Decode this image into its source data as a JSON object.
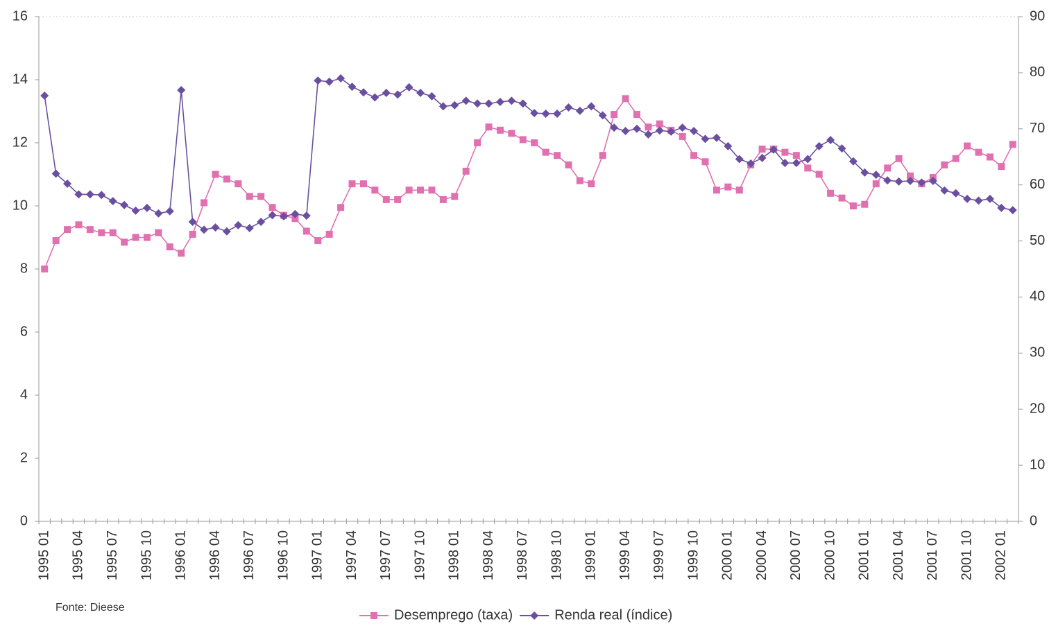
{
  "chart_data": {
    "type": "line",
    "source": "Fonte: Dieese",
    "categories": [
      "1995 01",
      null,
      null,
      "1995 04",
      null,
      null,
      "1995 07",
      null,
      null,
      "1995 10",
      null,
      null,
      "1996 01",
      null,
      null,
      "1996 04",
      null,
      null,
      "1996 07",
      null,
      null,
      "1996 10",
      null,
      null,
      "1997 01",
      null,
      null,
      "1997 04",
      null,
      null,
      "1997 07",
      null,
      null,
      "1997 10",
      null,
      null,
      "1998 01",
      null,
      null,
      "1998 04",
      null,
      null,
      "1998 07",
      null,
      null,
      "1998 10",
      null,
      null,
      "1999 01",
      null,
      null,
      "1999 04",
      null,
      null,
      "1999 07",
      null,
      null,
      "1999 10",
      null,
      null,
      "2000 01",
      null,
      null,
      "2000 04",
      null,
      null,
      "2000 07",
      null,
      null,
      "2000 10",
      null,
      null,
      "2001 01",
      null,
      null,
      "2001 04",
      null,
      null,
      "2001 07",
      null,
      null,
      "2001 10",
      null,
      null,
      "2002 01",
      null
    ],
    "series": [
      {
        "name": "Desemprego (taxa)",
        "color": "#e070b0",
        "marker": "square",
        "axis": "y",
        "values": [
          8.0,
          8.9,
          9.25,
          9.4,
          9.25,
          9.15,
          9.15,
          8.85,
          9.0,
          9.0,
          9.15,
          8.7,
          8.5,
          9.1,
          10.1,
          11.0,
          10.85,
          10.7,
          10.3,
          10.3,
          9.95,
          9.7,
          9.6,
          9.2,
          8.9,
          9.1,
          9.95,
          10.7,
          10.7,
          10.5,
          10.2,
          10.2,
          10.5,
          10.5,
          10.5,
          10.2,
          10.3,
          11.1,
          12.0,
          12.5,
          12.4,
          12.3,
          12.1,
          12.0,
          11.7,
          11.6,
          11.3,
          10.8,
          10.7,
          11.6,
          12.9,
          13.4,
          12.9,
          12.5,
          12.6,
          12.4,
          12.2,
          11.6,
          11.4,
          10.5,
          10.6,
          10.5,
          11.3,
          11.8,
          11.8,
          11.7,
          11.6,
          11.2,
          11.0,
          10.4,
          10.25,
          10.0,
          10.05,
          10.7,
          11.2,
          11.5,
          10.95,
          10.7,
          10.9,
          11.3,
          11.5,
          11.9,
          11.7,
          11.55,
          11.25,
          11.95
        ]
      },
      {
        "name": "Renda real (índice)",
        "color": "#6a4fa0",
        "marker": "diamond",
        "axis": "y2",
        "values": [
          75.9,
          62.0,
          60.2,
          58.3,
          58.3,
          58.2,
          57.1,
          56.4,
          55.4,
          55.9,
          54.9,
          55.3,
          76.9,
          53.4,
          52.0,
          52.4,
          51.7,
          52.8,
          52.3,
          53.4,
          54.6,
          54.4,
          54.8,
          54.5,
          78.6,
          78.4,
          79.0,
          77.5,
          76.5,
          75.6,
          76.4,
          76.1,
          77.4,
          76.4,
          75.8,
          74.0,
          74.2,
          75.0,
          74.5,
          74.5,
          74.8,
          75.0,
          74.5,
          72.8,
          72.7,
          72.7,
          73.8,
          73.2,
          74.0,
          72.4,
          70.2,
          69.6,
          70.0,
          69.0,
          69.7,
          69.5,
          70.2,
          69.6,
          68.2,
          68.4,
          66.9,
          64.6,
          63.8,
          64.8,
          66.3,
          63.9,
          63.9,
          64.6,
          66.9,
          68.0,
          66.5,
          64.2,
          62.2,
          61.8,
          60.8,
          60.6,
          60.7,
          60.4,
          60.7,
          59.0,
          58.5,
          57.5,
          57.2,
          57.5,
          55.9,
          55.5
        ]
      }
    ],
    "ylim": [
      0,
      16
    ],
    "yticks": [
      0,
      2,
      4,
      6,
      8,
      10,
      12,
      14,
      16
    ],
    "y2lim": [
      0,
      90
    ],
    "y2ticks": [
      0,
      10,
      20,
      30,
      40,
      50,
      60,
      70,
      80,
      90
    ],
    "legend": "bottom"
  }
}
